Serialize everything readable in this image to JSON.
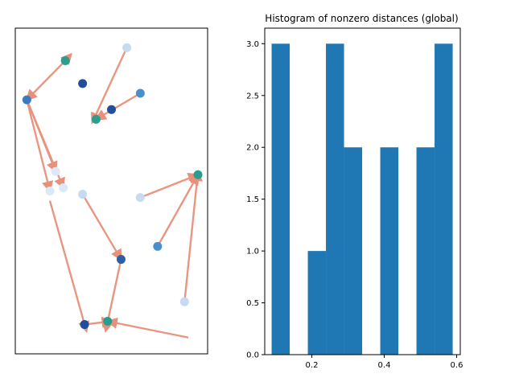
{
  "chart_data": [
    {
      "type": "scatter",
      "title": "",
      "xlabel": "",
      "ylabel": "",
      "axes_ticks": "hidden",
      "xlim": [
        0,
        1
      ],
      "ylim": [
        0,
        1
      ],
      "arrow_color": "#e8907a",
      "points": [
        {
          "x": 0.58,
          "y": 0.94,
          "color": "#c6dbef"
        },
        {
          "x": 0.26,
          "y": 0.9,
          "color": "#2a9d8f"
        },
        {
          "x": 0.35,
          "y": 0.83,
          "color": "#1f4e9c"
        },
        {
          "x": 0.65,
          "y": 0.8,
          "color": "#4a8fc9"
        },
        {
          "x": 0.06,
          "y": 0.78,
          "color": "#3a7cbd"
        },
        {
          "x": 0.5,
          "y": 0.75,
          "color": "#1f4e9c"
        },
        {
          "x": 0.42,
          "y": 0.72,
          "color": "#2a9d8f"
        },
        {
          "x": 0.21,
          "y": 0.56,
          "color": "#dbe9f6"
        },
        {
          "x": 0.95,
          "y": 0.55,
          "color": "#2a9d8f"
        },
        {
          "x": 0.25,
          "y": 0.51,
          "color": "#dbe9f6"
        },
        {
          "x": 0.18,
          "y": 0.5,
          "color": "#dbe9f6"
        },
        {
          "x": 0.35,
          "y": 0.49,
          "color": "#c6dbef"
        },
        {
          "x": 0.65,
          "y": 0.48,
          "color": "#c6dbef"
        },
        {
          "x": 0.74,
          "y": 0.33,
          "color": "#4a8fc9"
        },
        {
          "x": 0.55,
          "y": 0.29,
          "color": "#2b5fa8"
        },
        {
          "x": 0.88,
          "y": 0.16,
          "color": "#c6dbef"
        },
        {
          "x": 0.36,
          "y": 0.09,
          "color": "#1f4e9c"
        },
        {
          "x": 0.48,
          "y": 0.1,
          "color": "#2a9d8f"
        }
      ],
      "arrows": [
        {
          "from": [
            0.58,
            0.94
          ],
          "to": [
            0.4,
            0.71
          ]
        },
        {
          "from": [
            0.26,
            0.9
          ],
          "to": [
            0.06,
            0.78
          ]
        },
        {
          "from": [
            0.26,
            0.9
          ],
          "to": [
            0.29,
            0.92
          ]
        },
        {
          "from": [
            0.65,
            0.8
          ],
          "to": [
            0.42,
            0.72
          ]
        },
        {
          "from": [
            0.06,
            0.78
          ],
          "to": [
            0.18,
            0.5
          ]
        },
        {
          "from": [
            0.06,
            0.78
          ],
          "to": [
            0.25,
            0.51
          ]
        },
        {
          "from": [
            0.06,
            0.78
          ],
          "to": [
            0.21,
            0.56
          ]
        },
        {
          "from": [
            0.35,
            0.49
          ],
          "to": [
            0.55,
            0.29
          ]
        },
        {
          "from": [
            0.65,
            0.48
          ],
          "to": [
            0.95,
            0.55
          ]
        },
        {
          "from": [
            0.74,
            0.33
          ],
          "to": [
            0.95,
            0.55
          ]
        },
        {
          "from": [
            0.88,
            0.16
          ],
          "to": [
            0.95,
            0.56
          ]
        },
        {
          "from": [
            0.55,
            0.29
          ],
          "to": [
            0.47,
            0.07
          ]
        },
        {
          "from": [
            0.18,
            0.47
          ],
          "to": [
            0.37,
            0.07
          ]
        },
        {
          "from": [
            0.9,
            0.05
          ],
          "to": [
            0.48,
            0.1
          ]
        },
        {
          "from": [
            0.36,
            0.09
          ],
          "to": [
            0.5,
            0.1
          ]
        }
      ]
    },
    {
      "type": "bar",
      "title": "Histogram of nonzero distances (global)",
      "xlabel": "",
      "ylabel": "",
      "xlim": [
        0.07,
        0.61
      ],
      "ylim": [
        0,
        3.15
      ],
      "bar_color": "#1f77b4",
      "bins": [
        {
          "x0": 0.089,
          "x1": 0.139,
          "value": 3
        },
        {
          "x0": 0.139,
          "x1": 0.189,
          "value": 0
        },
        {
          "x0": 0.189,
          "x1": 0.239,
          "value": 1
        },
        {
          "x0": 0.239,
          "x1": 0.289,
          "value": 3
        },
        {
          "x0": 0.289,
          "x1": 0.339,
          "value": 2
        },
        {
          "x0": 0.339,
          "x1": 0.389,
          "value": 0
        },
        {
          "x0": 0.389,
          "x1": 0.439,
          "value": 2
        },
        {
          "x0": 0.439,
          "x1": 0.489,
          "value": 0
        },
        {
          "x0": 0.489,
          "x1": 0.539,
          "value": 2
        },
        {
          "x0": 0.539,
          "x1": 0.589,
          "value": 3
        }
      ],
      "xticks": [
        0.2,
        0.4,
        0.6
      ],
      "xtick_labels": [
        "0.2",
        "0.4",
        "0.6"
      ],
      "yticks": [
        0.0,
        0.5,
        1.0,
        1.5,
        2.0,
        2.5,
        3.0
      ],
      "ytick_labels": [
        "0.0",
        "0.5",
        "1.0",
        "1.5",
        "2.0",
        "2.5",
        "3.0"
      ]
    }
  ]
}
